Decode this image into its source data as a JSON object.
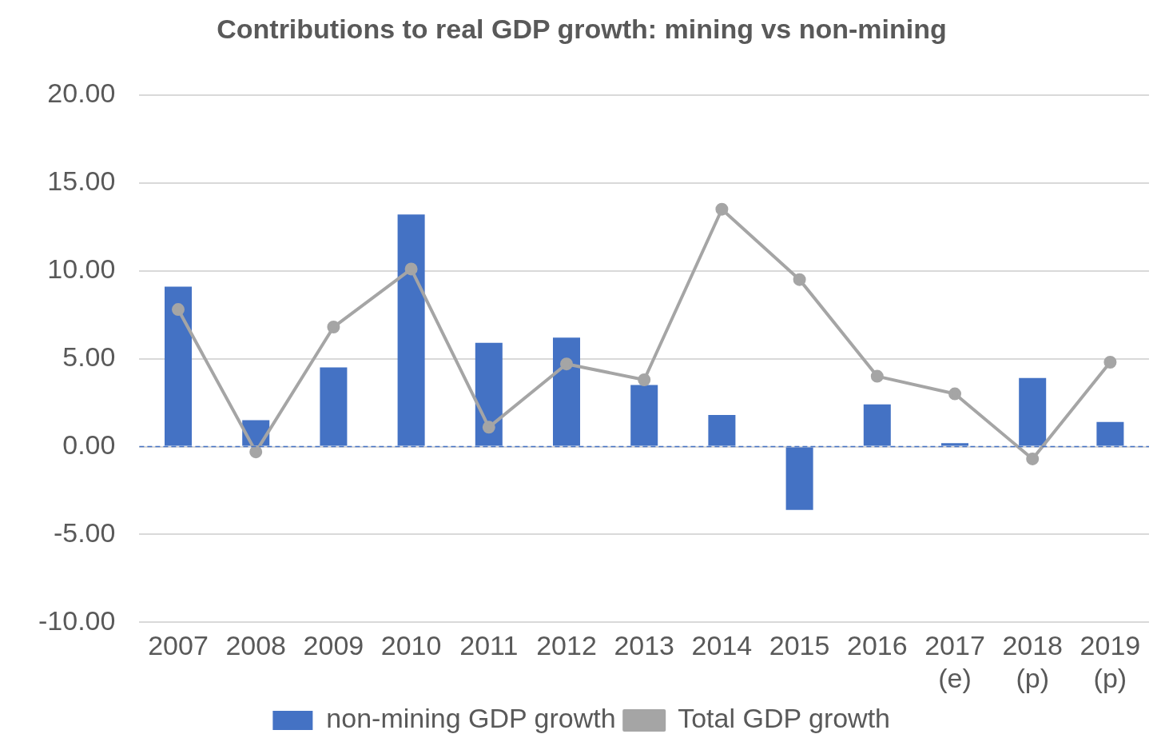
{
  "chart_data": {
    "type": "bar",
    "title": "Contributions to real GDP growth: mining vs non-mining",
    "categories": [
      "2007",
      "2008",
      "2009",
      "2010",
      "2011",
      "2012",
      "2013",
      "2014",
      "2015",
      "2016",
      "2017\n(e)",
      "2018\n(p)",
      "2019\n(p)"
    ],
    "series": [
      {
        "name": "non-mining GDP growth",
        "color": "#4472c4",
        "values": [
          9.1,
          1.5,
          4.5,
          13.2,
          5.9,
          6.2,
          3.5,
          1.8,
          -3.6,
          2.4,
          0.2,
          3.9,
          1.4
        ]
      },
      {
        "name": "Total GDP growth",
        "type": "line",
        "color": "#a5a5a5",
        "marker": "circle",
        "values": [
          7.8,
          -0.3,
          6.8,
          10.1,
          1.1,
          4.7,
          3.8,
          13.5,
          9.5,
          4.0,
          3.0,
          -0.7,
          4.8
        ]
      }
    ],
    "ylim": [
      -10,
      20
    ],
    "yticks": [
      {
        "value": -10,
        "label": "-10.00"
      },
      {
        "value": -5,
        "label": "-5.00"
      },
      {
        "value": 0,
        "label": "0.00"
      },
      {
        "value": 5,
        "label": "5.00"
      },
      {
        "value": 10,
        "label": "10.00"
      },
      {
        "value": 15,
        "label": "15.00"
      },
      {
        "value": 20,
        "label": "20.00"
      }
    ],
    "ref_lines": [
      {
        "axis": "y",
        "value": 0,
        "label": null,
        "color": "#4472c4",
        "line_style": "dashed"
      }
    ],
    "grid": "y",
    "legend": "bottom"
  }
}
